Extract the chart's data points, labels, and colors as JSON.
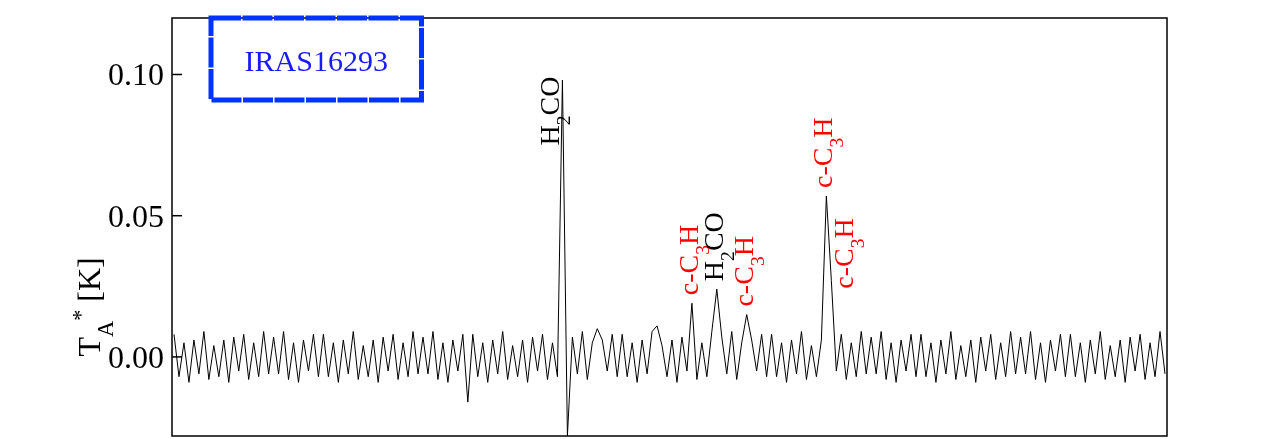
{
  "chart_data": {
    "type": "line",
    "ylabel": "T$_{A}$$^{*}$ [K]",
    "categories": [
      null,
      null,
      null,
      null,
      null,
      null,
      null,
      null,
      null,
      null,
      null,
      null,
      null,
      null,
      null,
      null,
      null,
      null,
      null,
      null,
      null,
      null,
      null,
      null,
      null,
      null,
      null,
      null,
      null,
      null,
      null,
      null,
      null,
      null,
      null,
      null,
      null,
      null,
      null,
      null,
      null,
      null,
      null,
      null,
      null,
      null,
      null,
      null,
      null,
      null,
      null,
      null,
      null,
      null,
      null,
      null,
      null,
      null,
      null,
      null,
      null,
      null,
      null,
      null,
      null,
      null,
      null,
      null,
      null,
      null,
      null,
      null,
      null,
      null,
      null,
      null,
      null,
      null,
      null,
      null,
      null,
      null,
      null,
      null,
      null,
      null,
      null,
      null,
      null,
      null,
      null,
      null,
      null,
      null,
      null,
      null,
      null,
      null,
      null,
      null,
      null,
      null,
      null,
      null,
      null,
      null,
      null,
      null,
      null,
      null,
      null,
      null,
      null,
      null,
      null,
      null,
      null,
      null,
      null,
      null,
      null,
      null,
      null,
      null,
      null,
      null,
      null,
      null,
      null,
      null,
      null,
      null,
      null,
      null,
      null,
      null,
      null,
      null,
      null,
      null,
      null,
      null,
      null,
      null,
      null,
      null,
      null,
      null,
      null,
      null,
      null,
      null,
      null,
      null,
      null,
      null,
      null,
      null,
      null,
      null,
      null,
      null,
      null,
      null,
      null,
      null,
      null,
      null,
      null,
      null,
      null,
      null,
      null,
      null,
      null,
      null,
      null,
      null,
      null,
      null,
      null,
      null,
      null,
      null,
      null,
      null,
      null,
      null,
      null,
      null,
      null,
      null,
      null,
      null,
      null,
      null,
      null,
      null,
      null,
      null
    ],
    "series": [
      {
        "color": "#000000",
        "values": [
          0.008,
          -0.007,
          0.005,
          -0.009,
          0.006,
          -0.006,
          0.009,
          -0.008,
          0.004,
          -0.007,
          0.006,
          -0.009,
          0.007,
          -0.005,
          0.008,
          -0.008,
          0.005,
          -0.007,
          0.009,
          -0.006,
          0.007,
          -0.006,
          0.009,
          -0.008,
          0.005,
          -0.009,
          0.006,
          -0.005,
          0.008,
          -0.007,
          0.008,
          -0.007,
          0.005,
          -0.009,
          0.006,
          -0.006,
          0.009,
          -0.008,
          0.004,
          -0.007,
          0.006,
          -0.009,
          0.007,
          -0.005,
          0.008,
          -0.008,
          0.005,
          -0.007,
          0.009,
          -0.006,
          0.007,
          -0.006,
          0.009,
          -0.008,
          0.005,
          -0.009,
          0.006,
          -0.005,
          0.008,
          -0.016,
          0.008,
          -0.007,
          0.005,
          -0.009,
          0.006,
          -0.006,
          0.009,
          -0.008,
          0.004,
          -0.007,
          0.006,
          -0.009,
          0.007,
          -0.005,
          0.008,
          -0.008,
          0.005,
          -0.007,
          0.098,
          -0.028,
          0.007,
          -0.006,
          0.009,
          -0.008,
          0.005,
          0.01,
          0.006,
          -0.005,
          0.008,
          -0.007,
          0.008,
          -0.007,
          0.005,
          -0.009,
          0.006,
          -0.006,
          0.009,
          0.011,
          0.004,
          -0.007,
          0.006,
          -0.009,
          0.007,
          -0.005,
          0.019,
          -0.008,
          0.005,
          -0.007,
          0.009,
          0.024,
          0.007,
          -0.006,
          0.009,
          -0.008,
          0.005,
          0.015,
          0.006,
          -0.005,
          0.008,
          -0.007,
          0.008,
          -0.007,
          0.005,
          -0.009,
          0.006,
          -0.006,
          0.009,
          -0.008,
          0.004,
          -0.007,
          0.006,
          0.057,
          0.027,
          -0.005,
          0.008,
          -0.008,
          0.005,
          -0.007,
          0.009,
          -0.006,
          0.007,
          -0.006,
          0.009,
          -0.008,
          0.005,
          -0.009,
          0.006,
          -0.005,
          0.008,
          -0.007,
          0.008,
          -0.007,
          0.005,
          -0.009,
          0.006,
          -0.006,
          0.009,
          -0.008,
          0.004,
          -0.007,
          0.006,
          -0.009,
          0.007,
          -0.005,
          0.008,
          -0.008,
          0.005,
          -0.007,
          0.009,
          -0.006,
          0.007,
          -0.006,
          0.009,
          -0.008,
          0.005,
          -0.009,
          0.006,
          -0.005,
          0.008,
          -0.007,
          0.008,
          -0.007,
          0.005,
          -0.009,
          0.006,
          -0.006,
          0.009,
          -0.008,
          0.004,
          -0.007,
          0.006,
          -0.009,
          0.007,
          -0.005,
          0.008,
          -0.008,
          0.005,
          -0.007,
          0.009,
          -0.006
        ]
      }
    ],
    "ylim": [
      -0.028,
      0.12
    ],
    "yticks": [
      {
        "value": 0,
        "label": "0.00"
      },
      {
        "value": 0.05,
        "label": "0.05"
      },
      {
        "value": 0.1,
        "label": "0.10"
      }
    ],
    "tick_labels": "y",
    "annotations": [
      "IRAS16293",
      "H$_{2}$CO",
      "c-C$_{3}$H",
      {
        "text": "c-C$_{3}$H",
        "y": 0.019
      },
      {
        "text": "H$_{2}$CO",
        "y": 0.024
      },
      {
        "text": "c-C$_{3}$H",
        "y": 0.015
      },
      {
        "text": "c-C$_{3}$H",
        "y": 0.057
      }
    ]
  }
}
